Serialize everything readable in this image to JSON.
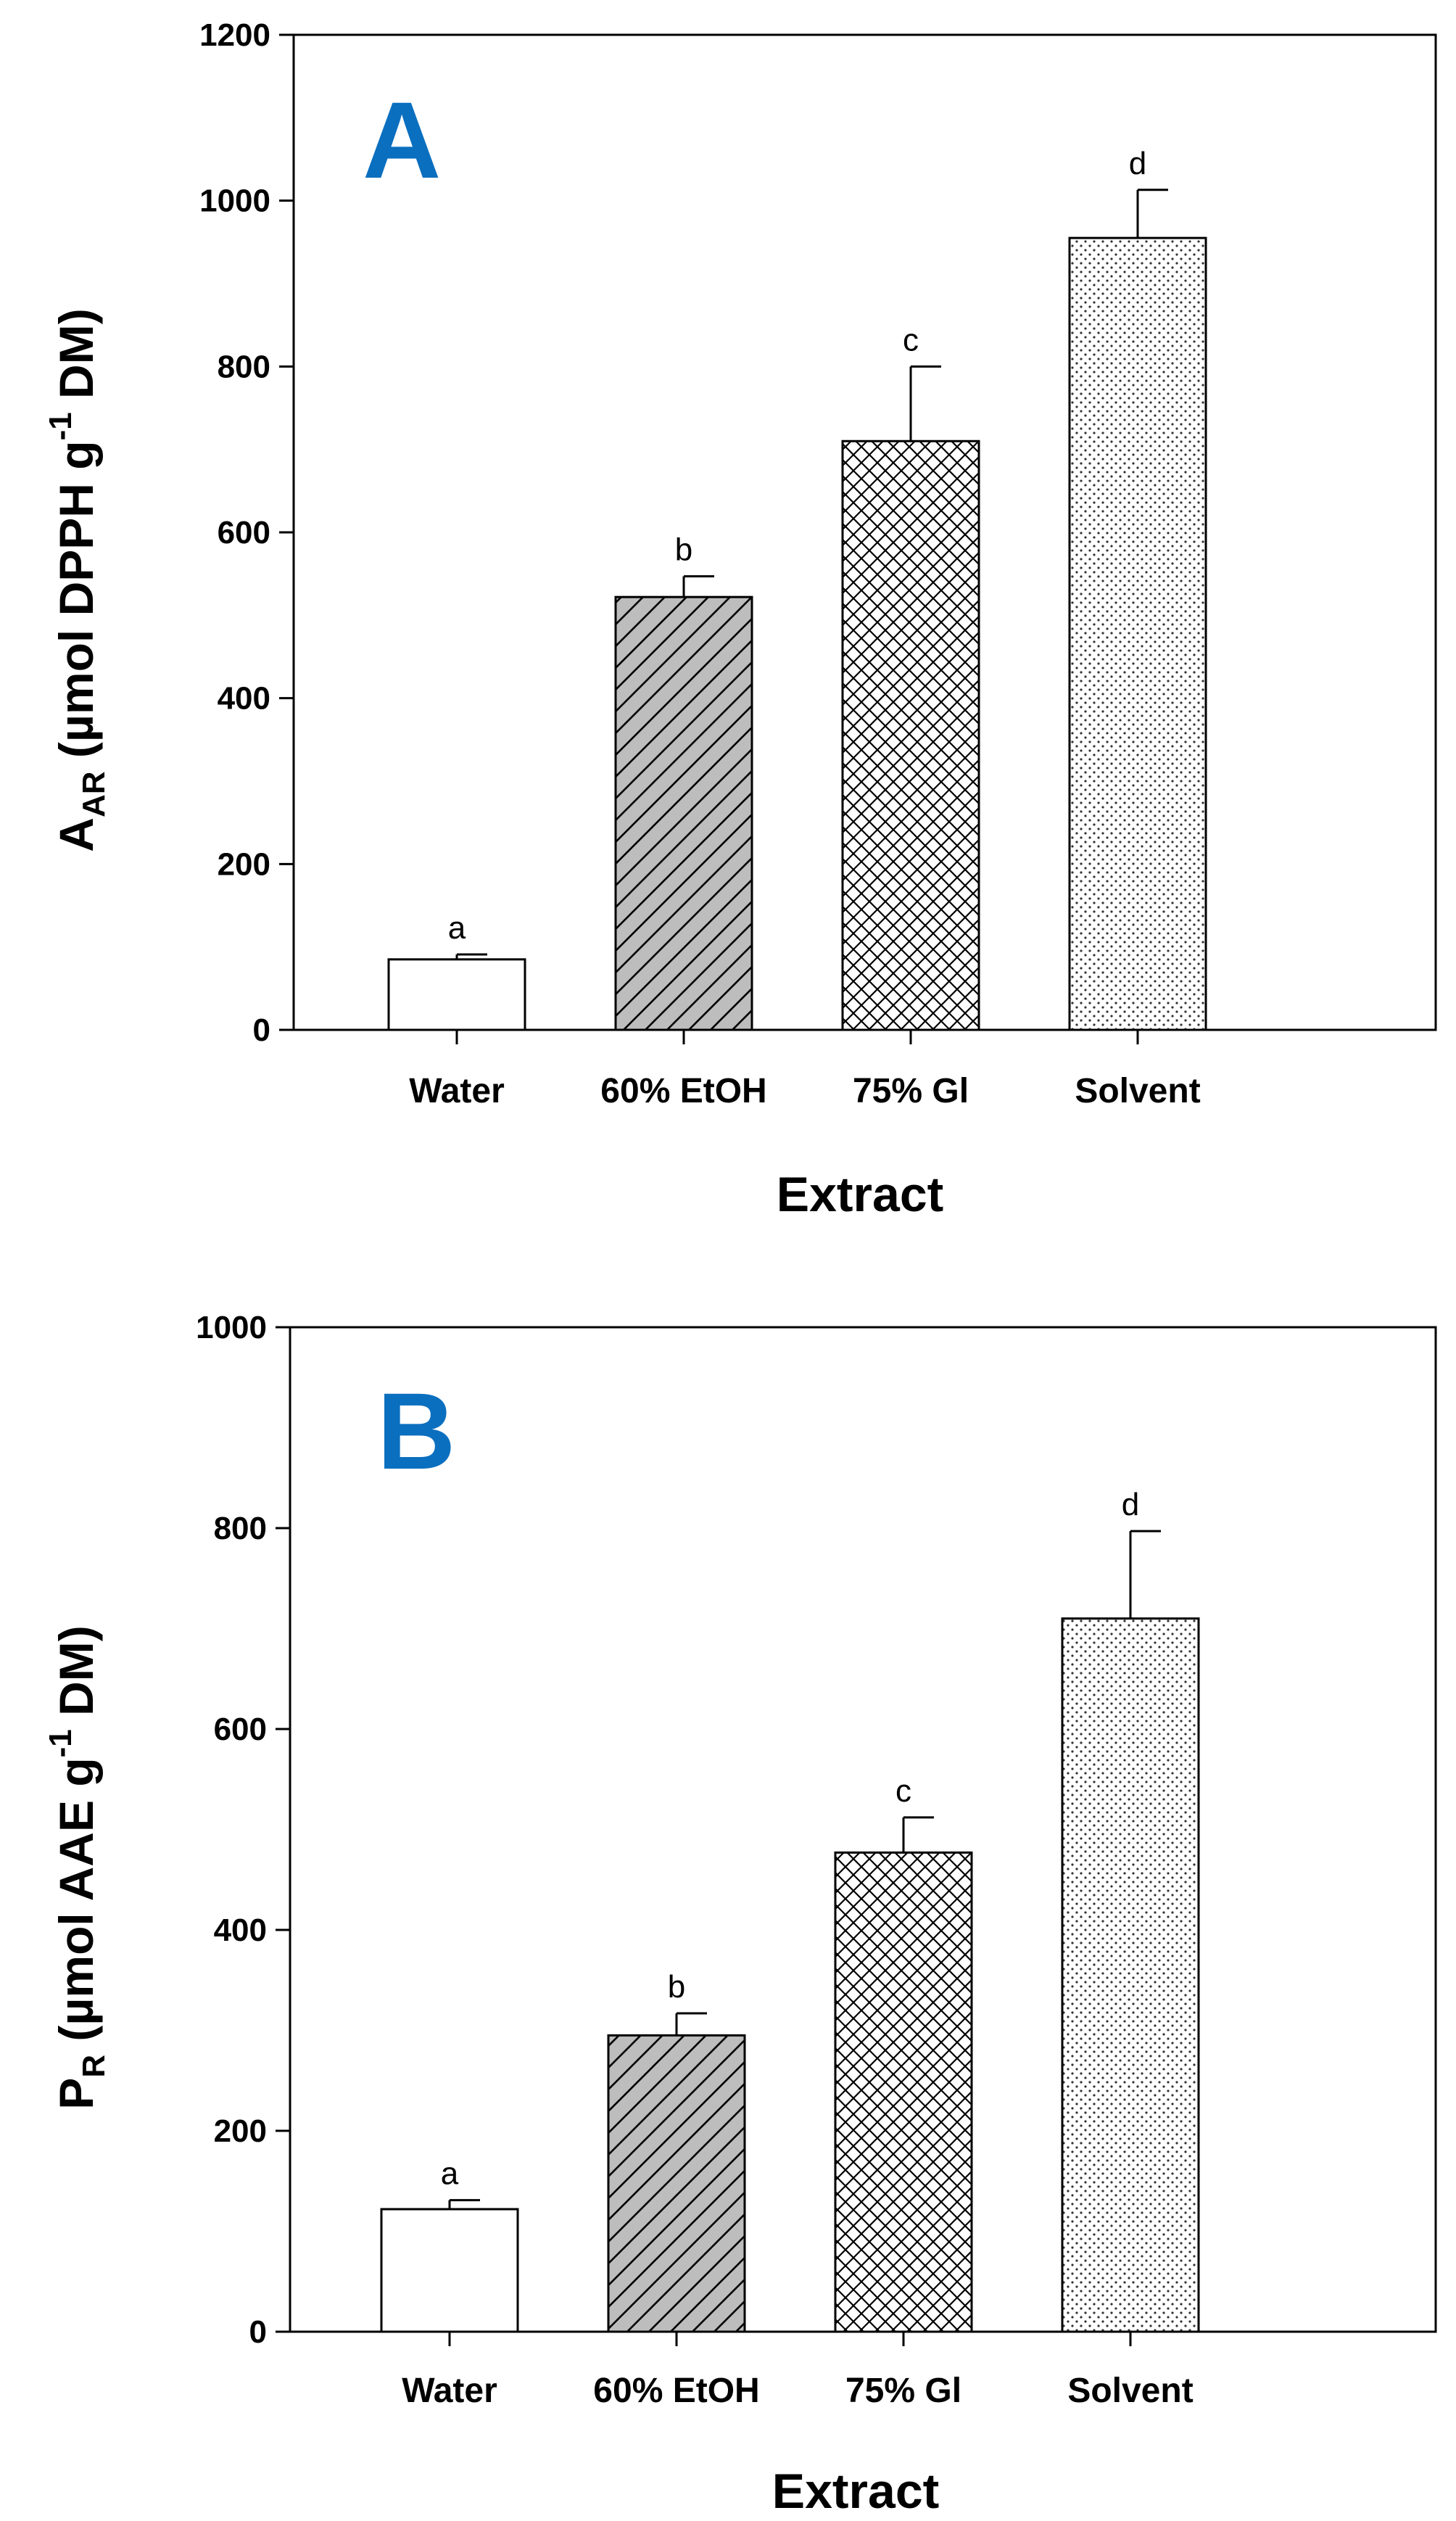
{
  "colors": {
    "panel_letter": "#0B6FBF",
    "axis": "#000000",
    "gray_bar": "#BDBDBD"
  },
  "chart_data": [
    {
      "type": "bar",
      "panel": "A",
      "title": "",
      "xlabel": "Extract",
      "ylabel": {
        "main": "A",
        "sub": "AR",
        "rest1": " (µmol DPPH g",
        "sup": "-1",
        "rest2": " DM)"
      },
      "ylim": [
        0,
        1200
      ],
      "yticks": [
        0,
        200,
        400,
        600,
        800,
        1000,
        1200
      ],
      "ytick_labels": [
        "0",
        "200",
        "400",
        "600",
        "800",
        "1000",
        "1200"
      ],
      "categories": [
        "Water",
        "60% EtOH",
        "75% Gl",
        "Solvent"
      ],
      "values": [
        85,
        522,
        710,
        955
      ],
      "errors": [
        6,
        25,
        90,
        58
      ],
      "significance": [
        "a",
        "b",
        "c",
        "d"
      ],
      "patterns": [
        "none",
        "diagonal",
        "crosshatch",
        "dots"
      ]
    },
    {
      "type": "bar",
      "panel": "B",
      "title": "",
      "xlabel": "Extract",
      "ylabel": {
        "main": "P",
        "sub": "R",
        "rest1": " (µmol AAE g",
        "sup": "-1",
        "rest2": " DM)"
      },
      "ylim": [
        0,
        1000
      ],
      "yticks": [
        0,
        200,
        400,
        600,
        800,
        1000
      ],
      "ytick_labels": [
        "0",
        "200",
        "400",
        "600",
        "800",
        "1000"
      ],
      "categories": [
        "Water",
        "60% EtOH",
        "75% Gl",
        "Solvent"
      ],
      "values": [
        122,
        295,
        477,
        710
      ],
      "errors": [
        9,
        22,
        35,
        87
      ],
      "significance": [
        "a",
        "b",
        "c",
        "d"
      ],
      "patterns": [
        "none",
        "diagonal",
        "crosshatch",
        "dots"
      ]
    }
  ]
}
